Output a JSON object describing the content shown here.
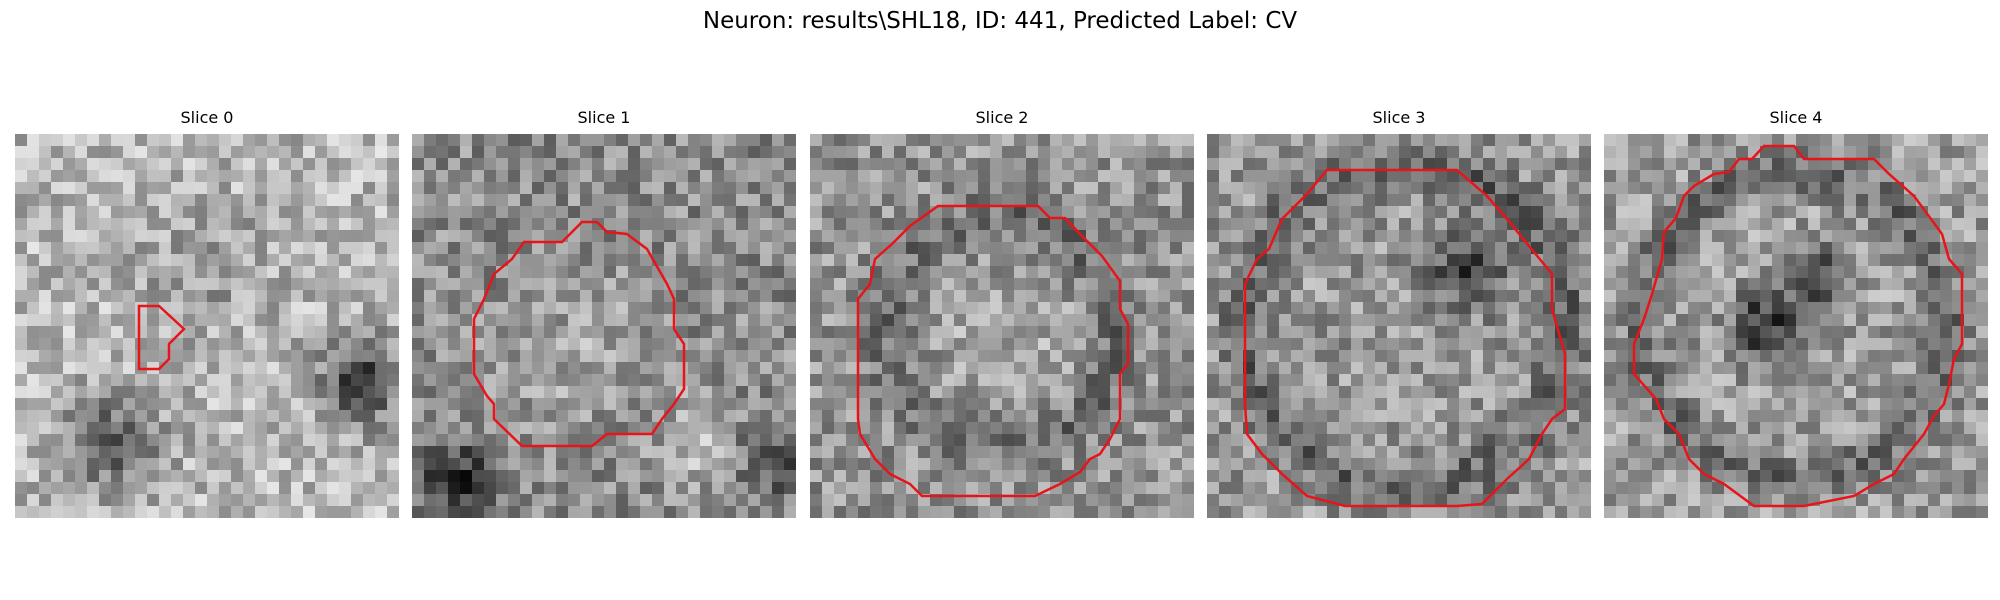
{
  "figure": {
    "title": "Neuron: results\\SHL18, ID: 441, Predicted Label: CV"
  },
  "colors": {
    "contour": "#e8141a",
    "background": "#ffffff"
  },
  "panels": [
    {
      "title": "Slice 0",
      "contour_size": "small",
      "seed": 11
    },
    {
      "title": "Slice 1",
      "contour_size": "medium",
      "seed": 23
    },
    {
      "title": "Slice 2",
      "contour_size": "large",
      "seed": 37
    },
    {
      "title": "Slice 3",
      "contour_size": "large",
      "seed": 41
    },
    {
      "title": "Slice 4",
      "contour_size": "large",
      "seed": 53
    }
  ]
}
